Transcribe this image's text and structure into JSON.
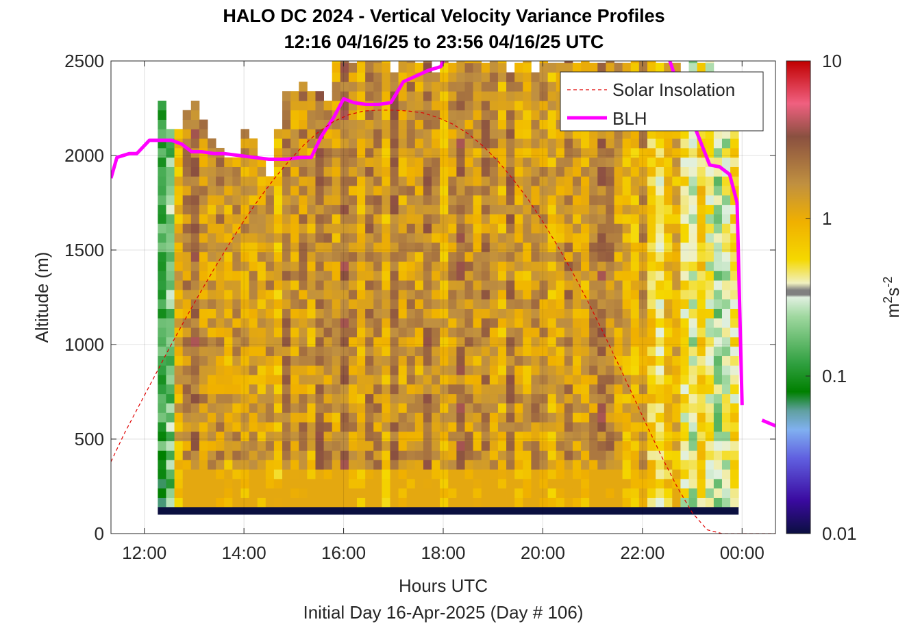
{
  "chart_data": {
    "type": "heatmap",
    "title": "HALO DC 2024 - Vertical Velocity Variance Profiles",
    "subtitle": "12:16 04/16/25 to 23:56 04/16/25  UTC",
    "xlabel": "Hours UTC",
    "xlabel2": "Initial Day 16-Apr-2025 (Day # 106)",
    "ylabel": "Altitude (m)",
    "xlim": [
      11.33,
      24.67
    ],
    "ylim": [
      0,
      2500
    ],
    "x_ticks": [
      12,
      14,
      16,
      18,
      20,
      22,
      24
    ],
    "x_tick_labels": [
      "12:00",
      "14:00",
      "16:00",
      "18:00",
      "20:00",
      "22:00",
      "00:00"
    ],
    "y_ticks": [
      0,
      500,
      1000,
      1500,
      2000,
      2500
    ],
    "grid": true,
    "colorbar": {
      "scale": "log",
      "range": [
        0.01,
        10
      ],
      "tick_values": [
        0.01,
        0.1,
        1,
        10
      ],
      "tick_labels": [
        "0.01",
        "0.1",
        "1",
        "10"
      ],
      "label_base": "m",
      "label_sup1": "2",
      "label_mid": "s",
      "label_sup2": "-2"
    },
    "legend": {
      "placement": "top-right",
      "entries": [
        {
          "name": "Solar Insolation",
          "color": "#e00000",
          "style": "dashed"
        },
        {
          "name": "BLH",
          "color": "#ff00ff",
          "style": "solid"
        }
      ]
    },
    "heatmap": {
      "time_start": 12.27,
      "time_end": 23.93,
      "column_width_hours": 0.1667,
      "bottom_band_altitude": [
        100,
        140
      ],
      "lowest_gate_altitude": 140,
      "gate_height_m": 50,
      "column_tops_m": [
        2250,
        2100,
        2100,
        2200,
        2250,
        2150,
        2050,
        2000,
        1950,
        1950,
        2100,
        2050,
        1950,
        1850,
        2100,
        2300,
        2300,
        2350,
        2300,
        2300,
        2250,
        2500,
        2500,
        2450,
        2500,
        2500,
        2500,
        2500,
        2400,
        2500,
        2500,
        2450,
        2500,
        2400,
        2500,
        2450,
        2500,
        2500,
        2500,
        2450,
        2500,
        2500,
        2400,
        2450,
        2500,
        2400,
        2500,
        2450,
        2450,
        2500,
        2450,
        2500,
        2450,
        2450,
        2500,
        2450,
        2450,
        2500,
        2500,
        2500,
        2450,
        2450,
        2450,
        2400,
        2500,
        2450,
        2500,
        2400,
        2200,
        2150
      ],
      "representative_log10_by_column": [
        -0.9,
        -0.7,
        0.0,
        0.2,
        0.35,
        0.15,
        0.1,
        0.2,
        0.05,
        0.15,
        0.1,
        0.1,
        0.05,
        0.15,
        -0.05,
        0.25,
        0.1,
        0.2,
        0.05,
        0.3,
        0.2,
        0.1,
        0.35,
        0.15,
        0.0,
        0.25,
        0.2,
        0.0,
        0.3,
        0.1,
        0.2,
        0.1,
        0.3,
        0.15,
        0.0,
        0.15,
        0.35,
        0.2,
        0.1,
        0.25,
        0.15,
        0.0,
        0.3,
        0.1,
        0.05,
        0.2,
        0.15,
        0.0,
        0.1,
        0.25,
        0.1,
        0.05,
        0.2,
        0.35,
        0.25,
        0.1,
        0.0,
        -0.05,
        0.15,
        -0.2,
        -0.3,
        -0.1,
        0.0,
        -0.35,
        -0.5,
        -0.2,
        -0.4,
        -0.6,
        -0.5,
        -0.3
      ]
    },
    "series": [
      {
        "name": "BLH",
        "color": "#ff00ff",
        "x": [
          11.33,
          11.45,
          11.7,
          11.85,
          12.1,
          12.35,
          12.55,
          12.75,
          12.95,
          13.15,
          13.4,
          13.6,
          13.9,
          14.2,
          14.5,
          14.85,
          15.15,
          15.35,
          15.55,
          15.8,
          16.0,
          16.2,
          16.45,
          16.7,
          16.95,
          17.2,
          17.45,
          17.7,
          17.95,
          18.0
        ],
        "y": [
          1880,
          1990,
          2010,
          2010,
          2080,
          2080,
          2080,
          2060,
          2020,
          2020,
          2010,
          2010,
          2000,
          1990,
          1980,
          1980,
          1990,
          1990,
          2100,
          2200,
          2300,
          2280,
          2270,
          2270,
          2280,
          2390,
          2420,
          2450,
          2470,
          2500
        ]
      },
      {
        "name": "BLH_late",
        "color": "#ff00ff",
        "x": [
          22.55,
          22.7,
          22.85,
          23.05,
          23.2,
          23.35,
          23.55,
          23.75,
          23.9,
          24.0
        ],
        "y": [
          2500,
          2380,
          2260,
          2150,
          2050,
          1950,
          1940,
          1900,
          1750,
          680
        ]
      },
      {
        "name": "BLH_end",
        "color": "#ff00ff",
        "x": [
          24.4,
          24.67
        ],
        "y": [
          600,
          570
        ]
      },
      {
        "name": "Solar Insolation",
        "color": "#e00000",
        "x": [
          11.33,
          11.6,
          11.9,
          12.2,
          12.5,
          12.8,
          13.1,
          13.4,
          13.7,
          14.0,
          14.3,
          14.6,
          14.9,
          15.2,
          15.5,
          15.8,
          16.1,
          16.4,
          16.7,
          17.0,
          17.3,
          17.6,
          17.9,
          18.2,
          18.5,
          18.8,
          19.1,
          19.4,
          19.7,
          20.0,
          20.3,
          20.6,
          20.9,
          21.2,
          21.5,
          21.8,
          22.1,
          22.4,
          22.7,
          23.0,
          23.3,
          23.6,
          23.9,
          24.2,
          24.5,
          24.67
        ],
        "y": [
          380,
          530,
          680,
          830,
          980,
          1125,
          1265,
          1400,
          1530,
          1655,
          1770,
          1875,
          1970,
          2055,
          2125,
          2180,
          2215,
          2235,
          2240,
          2240,
          2235,
          2225,
          2200,
          2165,
          2115,
          2050,
          1970,
          1875,
          1770,
          1650,
          1520,
          1380,
          1230,
          1070,
          905,
          735,
          565,
          400,
          245,
          110,
          20,
          0,
          0,
          0,
          0,
          0
        ]
      }
    ]
  }
}
